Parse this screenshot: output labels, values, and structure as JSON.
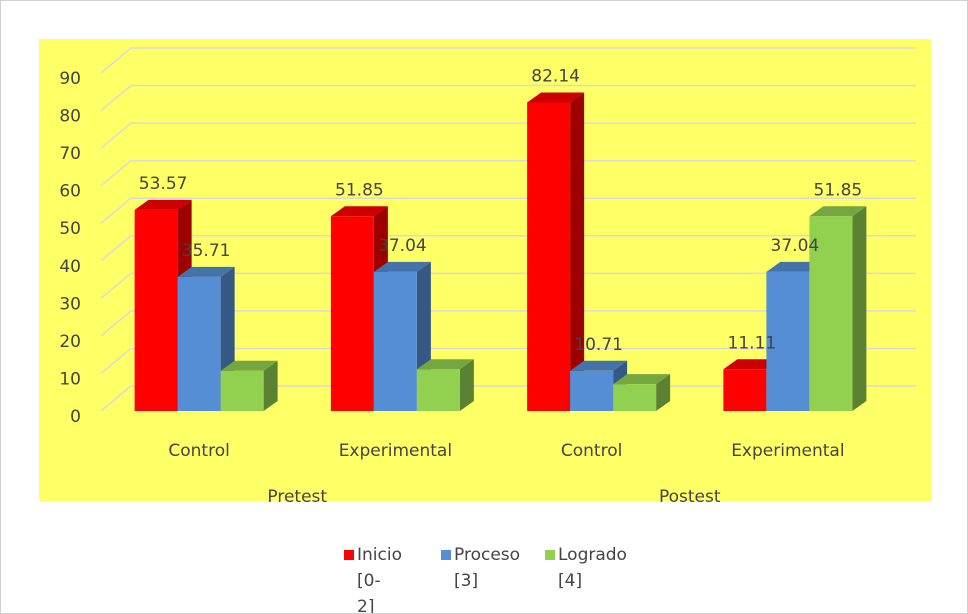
{
  "chart_data": {
    "type": "bar3d",
    "categories": [
      "Control",
      "Experimental",
      "Control",
      "Experimental"
    ],
    "group_labels": [
      "Pretest",
      "Postest"
    ],
    "series": [
      {
        "name": "Inicio [0-2]",
        "color": "#ff0000",
        "values": [
          53.57,
          51.85,
          82.14,
          11.11
        ],
        "value_labels": [
          "53.57",
          "51.85",
          "82.14",
          "11.11"
        ]
      },
      {
        "name": "Proceso [3]",
        "color": "#558ed5",
        "values": [
          35.71,
          37.04,
          10.71,
          37.04
        ],
        "value_labels": [
          "35.71",
          "37.04",
          "10.71",
          "37.04"
        ]
      },
      {
        "name": "Logrado [4]",
        "color": "#92d050",
        "values": [
          10.71,
          11.11,
          7.14,
          51.85
        ],
        "value_labels": [
          null,
          null,
          null,
          "51.85"
        ]
      }
    ],
    "ylim": [
      0,
      90
    ],
    "yticks": [
      0,
      10,
      20,
      30,
      40,
      50,
      60,
      70,
      80,
      90
    ],
    "grid": true,
    "background": "#ffff66",
    "legend": "bottom"
  }
}
